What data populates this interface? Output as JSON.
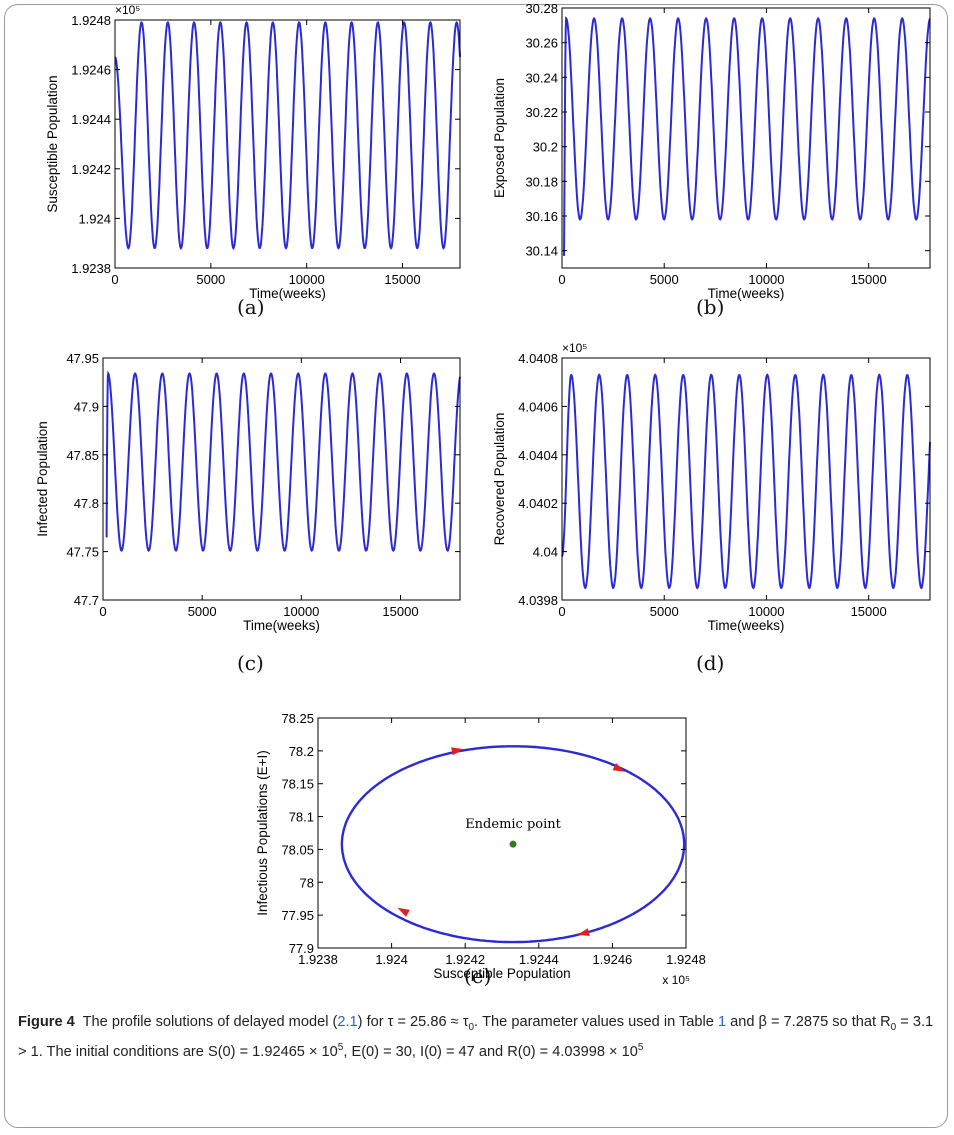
{
  "chart_data": [
    {
      "id": "a",
      "type": "line",
      "panel_label": "(a)",
      "xlabel": "Time(weeks)",
      "ylabel": "Susceptible Population",
      "exponent_label": "×10⁵",
      "xlim": [
        0,
        18000
      ],
      "ylim": [
        1.9238,
        1.9248
      ],
      "x_ticks": [
        "0",
        "5000",
        "10000",
        "15000"
      ],
      "y_ticks": [
        "1.9238",
        "1.924",
        "1.9242",
        "1.9244",
        "1.9246",
        "1.9248"
      ],
      "series": [
        {
          "color": "#2b2bd6",
          "start": 1.92465,
          "period_weeks": 1370,
          "min": 1.92388,
          "max": 1.92479,
          "first_extreme": "min",
          "first_extreme_at": 700
        }
      ]
    },
    {
      "id": "b",
      "type": "line",
      "panel_label": "(b)",
      "xlabel": "Time(weeks)",
      "ylabel": "Exposed Population",
      "exponent_label": "",
      "xlim": [
        0,
        18000
      ],
      "ylim": [
        30.13,
        30.28
      ],
      "x_ticks": [
        "0",
        "5000",
        "10000",
        "15000"
      ],
      "y_ticks": [
        "30.14",
        "30.16",
        "30.18",
        "30.2",
        "30.22",
        "30.24",
        "30.26",
        "30.28"
      ],
      "series": [
        {
          "color": "#2b2bd6",
          "start": 30.0,
          "period_weeks": 1370,
          "min": 30.158,
          "max": 30.274,
          "first_extreme": "max",
          "first_extreme_at": 200
        }
      ]
    },
    {
      "id": "c",
      "type": "line",
      "panel_label": "(c)",
      "xlabel": "Time(weeks)",
      "ylabel": "Infected Population",
      "exponent_label": "",
      "xlim": [
        0,
        18000
      ],
      "ylim": [
        47.7,
        47.95
      ],
      "x_ticks": [
        "0",
        "5000",
        "10000",
        "15000"
      ],
      "y_ticks": [
        "47.7",
        "47.75",
        "47.8",
        "47.85",
        "47.9",
        "47.95"
      ],
      "series": [
        {
          "color": "#2b2bd6",
          "start": 47.0,
          "period_weeks": 1370,
          "min": 47.751,
          "max": 47.934,
          "first_extreme": "max",
          "first_extreme_at": 250
        }
      ]
    },
    {
      "id": "d",
      "type": "line",
      "panel_label": "(d)",
      "xlabel": "Time(weeks)",
      "ylabel": "Recovered Population",
      "exponent_label": "×10⁵",
      "xlim": [
        0,
        18000
      ],
      "ylim": [
        4.0398,
        4.0408
      ],
      "x_ticks": [
        "0",
        "5000",
        "10000",
        "15000"
      ],
      "y_ticks": [
        "4.0398",
        "4.04",
        "4.0402",
        "4.0404",
        "4.0406",
        "4.0408"
      ],
      "series": [
        {
          "color": "#2b2bd6",
          "start": 4.03998,
          "period_weeks": 1370,
          "min": 4.03985,
          "max": 4.04073,
          "first_extreme": "max",
          "first_extreme_at": 450
        }
      ]
    },
    {
      "id": "e",
      "type": "line",
      "panel_label": "(e)",
      "xlabel": "Susceptible Population",
      "ylabel": "Infectious Populations (E+I)",
      "exponent_label": "x 10⁵",
      "xlim": [
        1.9238,
        1.9248
      ],
      "ylim": [
        77.9,
        78.25
      ],
      "x_ticks": [
        "1.9238",
        "1.924",
        "1.9242",
        "1.9244",
        "1.9246",
        "1.9248"
      ],
      "y_ticks": [
        "77.9",
        "77.95",
        "78",
        "78.05",
        "78.1",
        "78.15",
        "78.2",
        "78.25"
      ],
      "orbit": {
        "color": "#2b2bd6",
        "center": [
          1.92433,
          78.058
        ],
        "x_radius": 0.000465,
        "y_radius": 0.149
      },
      "endemic_point": {
        "label": "Endemic point",
        "x": 1.92433,
        "y": 78.058,
        "color": "#2e7d1e"
      },
      "arrow_color": "#e02020",
      "arrows": [
        [
          1.92418,
          78.201
        ],
        [
          1.92462,
          78.172
        ],
        [
          1.92403,
          77.957
        ],
        [
          1.92452,
          77.922
        ]
      ]
    }
  ],
  "caption": {
    "figure_label": "Figure 4",
    "part1": "The profile solutions of delayed model (",
    "ref_model": "2.1",
    "part2": ") for τ = 25.86 ≈ τ",
    "tau_sub": "0",
    "part3": ". The parameter values used in Table ",
    "ref_table": "1",
    "part4": " and β = 7.2875 so that R",
    "r_sub": "0",
    "part5": " = 3.1 > 1. The initial conditions are S(0) = 1.92465 × 10",
    "exp1": "5",
    "part6": ", E(0) = 30, I(0) = 47 and R(0) = 4.03998 × 10",
    "exp2": "5"
  }
}
